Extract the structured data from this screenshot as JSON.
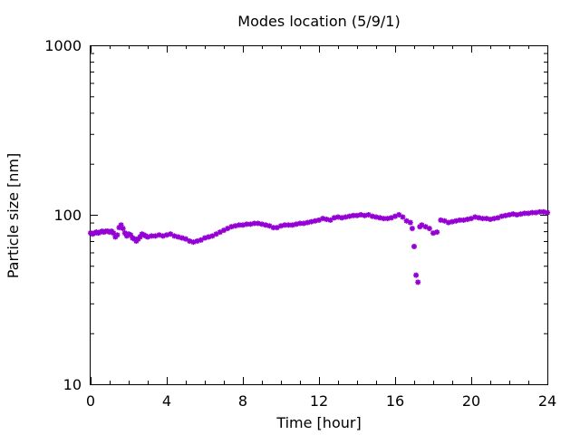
{
  "chart_data": {
    "type": "scatter",
    "title": "Modes location (5/9/1)",
    "xlabel": "Time [hour]",
    "ylabel": "Particle size [nm]",
    "xlim": [
      0,
      24
    ],
    "ylim": [
      10,
      1000
    ],
    "yscale": "log",
    "grid": false,
    "legend": "none",
    "marker_color": "#9400d3",
    "x_ticks": [
      0,
      4,
      8,
      12,
      16,
      20,
      24
    ],
    "x_tick_labels": [
      "0",
      "4",
      "8",
      "12",
      "16",
      "20",
      "24"
    ],
    "y_ticks": [
      10,
      100,
      1000
    ],
    "y_tick_labels": [
      "10",
      "100",
      "1000"
    ],
    "series": [
      {
        "x": [
          0.0,
          0.1,
          0.2,
          0.3,
          0.4,
          0.5,
          0.6,
          0.7,
          0.8,
          0.9,
          1.0,
          1.1,
          1.2,
          1.3,
          1.4,
          1.5,
          1.6,
          1.7,
          1.8,
          1.9,
          2.0,
          2.1,
          2.2,
          2.3,
          2.4,
          2.5,
          2.6,
          2.7,
          2.8,
          2.9,
          3.0,
          3.2,
          3.4,
          3.6,
          3.8,
          4.0,
          4.2,
          4.4,
          4.6,
          4.8,
          5.0,
          5.2,
          5.4,
          5.6,
          5.8,
          6.0,
          6.2,
          6.4,
          6.6,
          6.8,
          7.0,
          7.2,
          7.4,
          7.6,
          7.8,
          8.0,
          8.2,
          8.4,
          8.6,
          8.8,
          9.0,
          9.2,
          9.4,
          9.6,
          9.8,
          10.0,
          10.2,
          10.4,
          10.6,
          10.8,
          11.0,
          11.2,
          11.4,
          11.6,
          11.8,
          12.0,
          12.2,
          12.4,
          12.6,
          12.8,
          13.0,
          13.2,
          13.4,
          13.6,
          13.8,
          14.0,
          14.2,
          14.4,
          14.6,
          14.8,
          15.0,
          15.2,
          15.4,
          15.6,
          15.8,
          16.0,
          16.2,
          16.4,
          16.6,
          16.8,
          16.9,
          17.0,
          17.1,
          17.2,
          17.3,
          17.4,
          17.6,
          17.8,
          18.0,
          18.2,
          18.4,
          18.6,
          18.8,
          19.0,
          19.2,
          19.4,
          19.6,
          19.8,
          20.0,
          20.2,
          20.4,
          20.6,
          20.8,
          21.0,
          21.2,
          21.4,
          21.6,
          21.8,
          22.0,
          22.2,
          22.4,
          22.6,
          22.8,
          23.0,
          23.2,
          23.4,
          23.6,
          23.8,
          24.0
        ],
        "y": [
          78,
          77,
          78,
          79,
          78,
          79,
          80,
          79,
          80,
          80,
          79,
          80,
          78,
          74,
          76,
          84,
          87,
          83,
          78,
          75,
          77,
          76,
          73,
          72,
          70,
          72,
          74,
          77,
          76,
          75,
          74,
          75,
          75,
          76,
          75,
          76,
          77,
          75,
          74,
          73,
          72,
          70,
          69,
          70,
          71,
          73,
          74,
          75,
          77,
          79,
          81,
          83,
          85,
          86,
          87,
          87,
          88,
          88,
          89,
          89,
          88,
          87,
          86,
          84,
          84,
          86,
          87,
          87,
          87,
          88,
          89,
          89,
          90,
          91,
          92,
          93,
          95,
          94,
          93,
          96,
          97,
          96,
          97,
          98,
          99,
          99,
          100,
          99,
          100,
          98,
          97,
          96,
          95,
          95,
          96,
          98,
          100,
          97,
          92,
          90,
          83,
          65,
          44,
          40,
          85,
          87,
          85,
          83,
          78,
          79,
          93,
          92,
          90,
          91,
          92,
          93,
          93,
          94,
          95,
          97,
          96,
          95,
          95,
          94,
          95,
          96,
          98,
          99,
          100,
          101,
          100,
          101,
          102,
          102,
          103,
          103,
          104,
          104,
          103
        ]
      }
    ]
  }
}
